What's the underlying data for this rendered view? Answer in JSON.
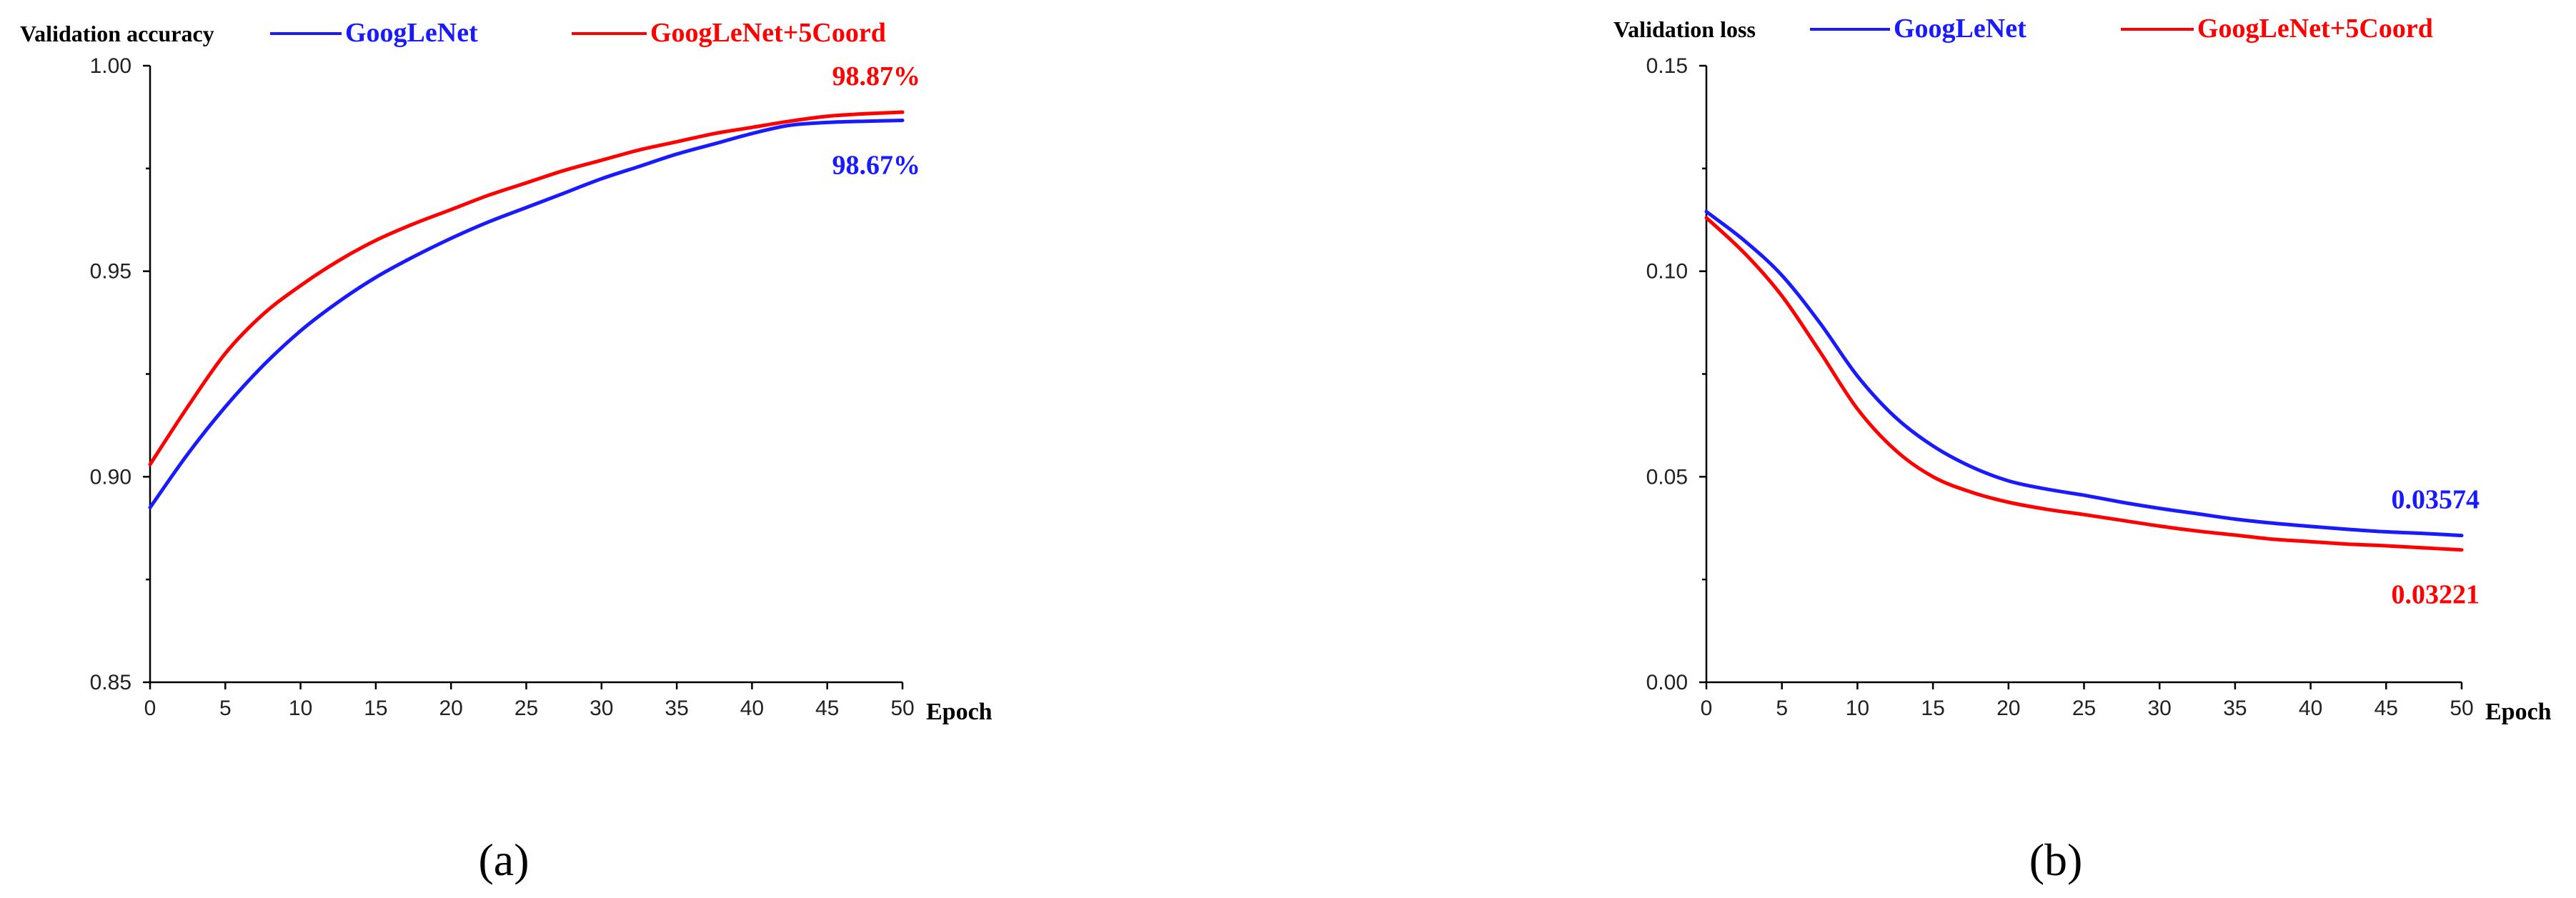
{
  "chart_data": [
    {
      "type": "line",
      "title": "Validation accuracy",
      "xlabel": "Epoch",
      "ylabel": "",
      "xlim": [
        0,
        50
      ],
      "ylim": [
        0.85,
        1.0
      ],
      "xticks": [
        0,
        5,
        10,
        15,
        20,
        25,
        30,
        35,
        40,
        45,
        50
      ],
      "yticks": [
        "0.85",
        "0.90",
        "0.95",
        "1.00"
      ],
      "legend_position": "top",
      "grid": false,
      "series": [
        {
          "name": "GoogLeNet",
          "color": "#1a1aff",
          "x": [
            0,
            2.5,
            5,
            7.5,
            10,
            12.5,
            15,
            17.5,
            20,
            22.5,
            25,
            27.5,
            30,
            32.5,
            35,
            37.5,
            40,
            42.5,
            45,
            47.5,
            50
          ],
          "y": [
            0.8925,
            0.9055,
            0.917,
            0.927,
            0.9355,
            0.9425,
            0.9485,
            0.9535,
            0.958,
            0.962,
            0.9655,
            0.969,
            0.9725,
            0.9755,
            0.9785,
            0.981,
            0.9835,
            0.9855,
            0.9862,
            0.9865,
            0.9867
          ]
        },
        {
          "name": "GoogLeNet+5Coord",
          "color": "#ff0000",
          "x": [
            0,
            2.5,
            5,
            7.5,
            10,
            12.5,
            15,
            17.5,
            20,
            22.5,
            25,
            27.5,
            30,
            32.5,
            35,
            37.5,
            40,
            42.5,
            45,
            47.5,
            50
          ],
          "y": [
            0.903,
            0.917,
            0.93,
            0.9395,
            0.9465,
            0.9525,
            0.9575,
            0.9615,
            0.965,
            0.9685,
            0.9715,
            0.9745,
            0.977,
            0.9795,
            0.9815,
            0.9835,
            0.985,
            0.9865,
            0.9877,
            0.9883,
            0.9887
          ]
        }
      ],
      "annotations": [
        {
          "text": "98.87%",
          "color": "#ff0000",
          "x": 50,
          "y": 0.9887,
          "place": "above"
        },
        {
          "text": "98.67%",
          "color": "#1a1aff",
          "x": 50,
          "y": 0.9867,
          "place": "below"
        }
      ],
      "panel_label": "(a)"
    },
    {
      "type": "line",
      "title": "Validation loss",
      "xlabel": "Epoch",
      "ylabel": "",
      "xlim": [
        0,
        50
      ],
      "ylim": [
        0.0,
        0.15
      ],
      "xticks": [
        0,
        5,
        10,
        15,
        20,
        25,
        30,
        35,
        40,
        45,
        50
      ],
      "yticks": [
        "0.00",
        "0.05",
        "0.10",
        "0.15"
      ],
      "legend_position": "top",
      "grid": false,
      "series": [
        {
          "name": "GoogLeNet",
          "color": "#1a1aff",
          "x": [
            0,
            2.5,
            5,
            7.5,
            10,
            12.5,
            15,
            17.5,
            20,
            22.5,
            25,
            27.5,
            30,
            32.5,
            35,
            37.5,
            40,
            42.5,
            45,
            47.5,
            50
          ],
          "y": [
            0.1145,
            0.1075,
            0.099,
            0.0875,
            0.0745,
            0.0645,
            0.0575,
            0.0525,
            0.049,
            0.047,
            0.0455,
            0.0438,
            0.0423,
            0.041,
            0.0397,
            0.0387,
            0.0379,
            0.0372,
            0.0366,
            0.0362,
            0.0357
          ]
        },
        {
          "name": "GoogLeNet+5Coord",
          "color": "#ff0000",
          "x": [
            0,
            2.5,
            5,
            7.5,
            10,
            12.5,
            15,
            17.5,
            20,
            22.5,
            25,
            27.5,
            30,
            32.5,
            35,
            37.5,
            40,
            42.5,
            45,
            47.5,
            50
          ],
          "y": [
            0.113,
            0.1045,
            0.094,
            0.0805,
            0.0665,
            0.0565,
            0.05,
            0.0463,
            0.0438,
            0.0421,
            0.0408,
            0.0394,
            0.038,
            0.0368,
            0.0358,
            0.0348,
            0.0342,
            0.0336,
            0.0332,
            0.0327,
            0.0322
          ]
        }
      ],
      "annotations": [
        {
          "text": "0.03574",
          "color": "#1a1aff",
          "x": 50,
          "y": 0.03574,
          "place": "above"
        },
        {
          "text": "0.03221",
          "color": "#ff0000",
          "x": 50,
          "y": 0.03221,
          "place": "below"
        }
      ],
      "panel_label": "(b)"
    }
  ]
}
